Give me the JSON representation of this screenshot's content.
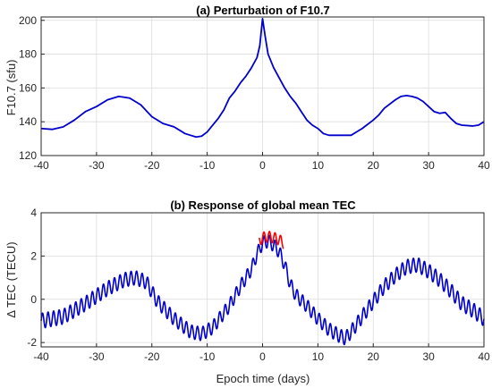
{
  "chart_data": [
    {
      "type": "line",
      "title": "(a) Perturbation of F10.7",
      "xlabel": "",
      "ylabel": "F10.7 (sfu)",
      "xlim": [
        -40,
        40
      ],
      "ylim": [
        120,
        202
      ],
      "xticks": [
        -40,
        -30,
        -20,
        -10,
        0,
        10,
        20,
        30,
        40
      ],
      "yticks": [
        120,
        140,
        160,
        180,
        200
      ],
      "grid": true,
      "series": [
        {
          "color": "#0000cc",
          "points": [
            [
              -40,
              136
            ],
            [
              -38,
              135.5
            ],
            [
              -36,
              137
            ],
            [
              -34,
              141
            ],
            [
              -32,
              146
            ],
            [
              -30,
              149
            ],
            [
              -28,
              153
            ],
            [
              -27,
              154
            ],
            [
              -26,
              155
            ],
            [
              -25,
              154.5
            ],
            [
              -24,
              154
            ],
            [
              -22,
              150
            ],
            [
              -20,
              143
            ],
            [
              -18,
              139
            ],
            [
              -16,
              137
            ],
            [
              -14,
              133
            ],
            [
              -12,
              131
            ],
            [
              -11,
              131.5
            ],
            [
              -10,
              134
            ],
            [
              -9,
              138
            ],
            [
              -8,
              142
            ],
            [
              -7,
              147
            ],
            [
              -6,
              154
            ],
            [
              -5,
              158
            ],
            [
              -4,
              163
            ],
            [
              -3,
              167
            ],
            [
              -2,
              172
            ],
            [
              -1,
              178
            ],
            [
              -0.5,
              185
            ],
            [
              0,
              201
            ],
            [
              0.5,
              190
            ],
            [
              1,
              180
            ],
            [
              2,
              172
            ],
            [
              3,
              166
            ],
            [
              4,
              160
            ],
            [
              5,
              155
            ],
            [
              6,
              151
            ],
            [
              7,
              146
            ],
            [
              8,
              141
            ],
            [
              9,
              138
            ],
            [
              10,
              136
            ],
            [
              11,
              133
            ],
            [
              12,
              132
            ],
            [
              14,
              132
            ],
            [
              16,
              132
            ],
            [
              17,
              134
            ],
            [
              18,
              136
            ],
            [
              20,
              141
            ],
            [
              21,
              144
            ],
            [
              22,
              148
            ],
            [
              24,
              153
            ],
            [
              25,
              155
            ],
            [
              26,
              155.5
            ],
            [
              27,
              155
            ],
            [
              28,
              154
            ],
            [
              29,
              152
            ],
            [
              30,
              149
            ],
            [
              31,
              146
            ],
            [
              32,
              145
            ],
            [
              33,
              145.5
            ],
            [
              34,
              142
            ],
            [
              35,
              139
            ],
            [
              36,
              138
            ],
            [
              38,
              137.5
            ],
            [
              39,
              138
            ],
            [
              40,
              140
            ]
          ]
        }
      ]
    },
    {
      "type": "line",
      "title": "(b) Response of global mean TEC",
      "xlabel": "Epoch time (days)",
      "ylabel": "Δ TEC (TECU)",
      "xlim": [
        -40,
        40
      ],
      "ylim": [
        -2.2,
        4
      ],
      "xticks": [
        -40,
        -30,
        -20,
        -10,
        0,
        10,
        20,
        30,
        40
      ],
      "yticks": [
        -2,
        0,
        2,
        4
      ],
      "grid": true,
      "series": [
        {
          "color": "#0000cc",
          "period_days": 1,
          "envelope": [
            [
              -40,
              -1.0
            ],
            [
              -36,
              -0.8
            ],
            [
              -32,
              -0.2
            ],
            [
              -28,
              0.5
            ],
            [
              -25,
              0.9
            ],
            [
              -23,
              1.0
            ],
            [
              -21,
              0.8
            ],
            [
              -19,
              -0.1
            ],
            [
              -16,
              -0.9
            ],
            [
              -13,
              -1.5
            ],
            [
              -11,
              -1.6
            ],
            [
              -9,
              -1.3
            ],
            [
              -6,
              -0.3
            ],
            [
              -4,
              0.6
            ],
            [
              -2,
              1.4
            ],
            [
              -1,
              2.1
            ],
            [
              0,
              2.6
            ],
            [
              1,
              2.7
            ],
            [
              2,
              2.5
            ],
            [
              3,
              2.2
            ],
            [
              4,
              1.6
            ],
            [
              5,
              0.7
            ],
            [
              6,
              0.2
            ],
            [
              8,
              -0.3
            ],
            [
              10,
              -0.9
            ],
            [
              12,
              -1.4
            ],
            [
              14,
              -1.7
            ],
            [
              15,
              -1.8
            ],
            [
              16,
              -1.5
            ],
            [
              18,
              -0.8
            ],
            [
              20,
              -0.1
            ],
            [
              22,
              0.6
            ],
            [
              24,
              1.1
            ],
            [
              26,
              1.5
            ],
            [
              28,
              1.6
            ],
            [
              30,
              1.3
            ],
            [
              32,
              0.9
            ],
            [
              34,
              0.4
            ],
            [
              36,
              -0.2
            ],
            [
              38,
              -0.5
            ],
            [
              40,
              -0.9
            ]
          ],
          "amplitude": [
            [
              -40,
              0.35
            ],
            [
              0,
              0.3
            ],
            [
              40,
              0.35
            ]
          ]
        },
        {
          "color": "#ff0000",
          "period_days": 1,
          "envelope": [
            [
              -0.6,
              2.7
            ],
            [
              0,
              2.85
            ],
            [
              1,
              2.9
            ],
            [
              2,
              2.85
            ],
            [
              3,
              2.75
            ],
            [
              3.8,
              2.6
            ]
          ],
          "amplitude": [
            [
              -0.6,
              0.25
            ],
            [
              3.8,
              0.25
            ]
          ]
        }
      ]
    }
  ]
}
